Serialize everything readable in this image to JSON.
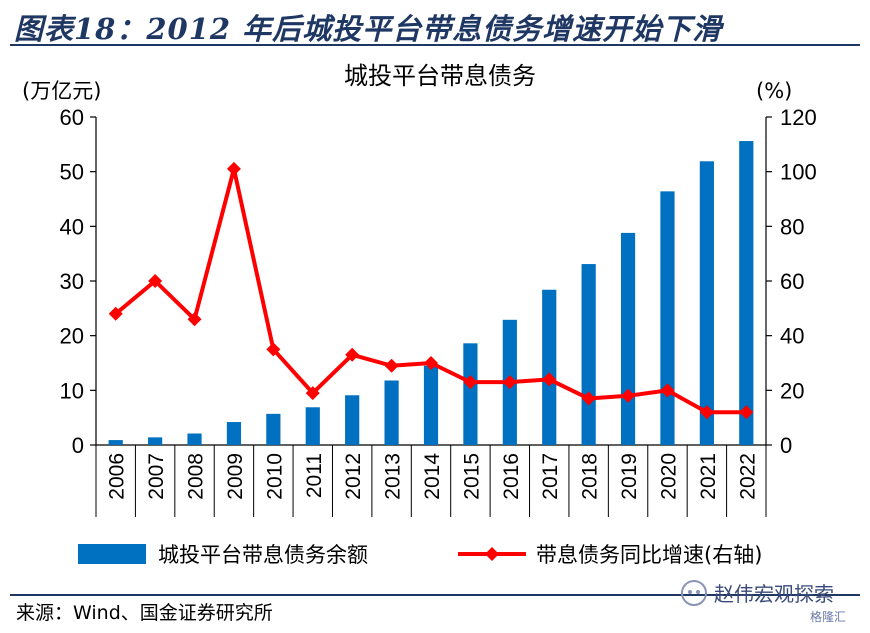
{
  "figure_title": "图表18：2012 年后城投平台带息债务增速开始下滑",
  "source_note": "来源：Wind、国金证券研究所",
  "watermark": {
    "main": "赵伟宏观探索",
    "sub": "格隆汇"
  },
  "colors": {
    "bar": "#0070c0",
    "line": "#ff0000",
    "rule": "#1f3763"
  },
  "chart_data": {
    "type": "bar",
    "title": "城投平台带息债务",
    "left_unit": "(万亿元)",
    "right_unit": "(%)",
    "categories": [
      "2006",
      "2007",
      "2008",
      "2009",
      "2010",
      "2011",
      "2012",
      "2013",
      "2014",
      "2015",
      "2016",
      "2017",
      "2018",
      "2019",
      "2020",
      "2021",
      "2022"
    ],
    "y_left": {
      "ticks": [
        0,
        10,
        20,
        30,
        40,
        50,
        60
      ],
      "range": [
        0,
        60
      ]
    },
    "y_right": {
      "ticks": [
        0,
        20,
        40,
        60,
        80,
        100,
        120
      ],
      "range": [
        0,
        120
      ]
    },
    "series": [
      {
        "name": "城投平台带息债务余额",
        "type": "bar",
        "axis": "left",
        "values": [
          0.9,
          1.4,
          2.1,
          4.2,
          5.7,
          6.9,
          9.1,
          11.8,
          14.5,
          18.6,
          22.9,
          28.4,
          33.1,
          38.8,
          46.4,
          51.9,
          55.6
        ]
      },
      {
        "name": "带息债务同比增速(右轴)",
        "type": "line",
        "axis": "right",
        "values": [
          48,
          60,
          46,
          101,
          35,
          19,
          33,
          29,
          30,
          23,
          23,
          24,
          17,
          18,
          20,
          12,
          12
        ]
      }
    ]
  }
}
